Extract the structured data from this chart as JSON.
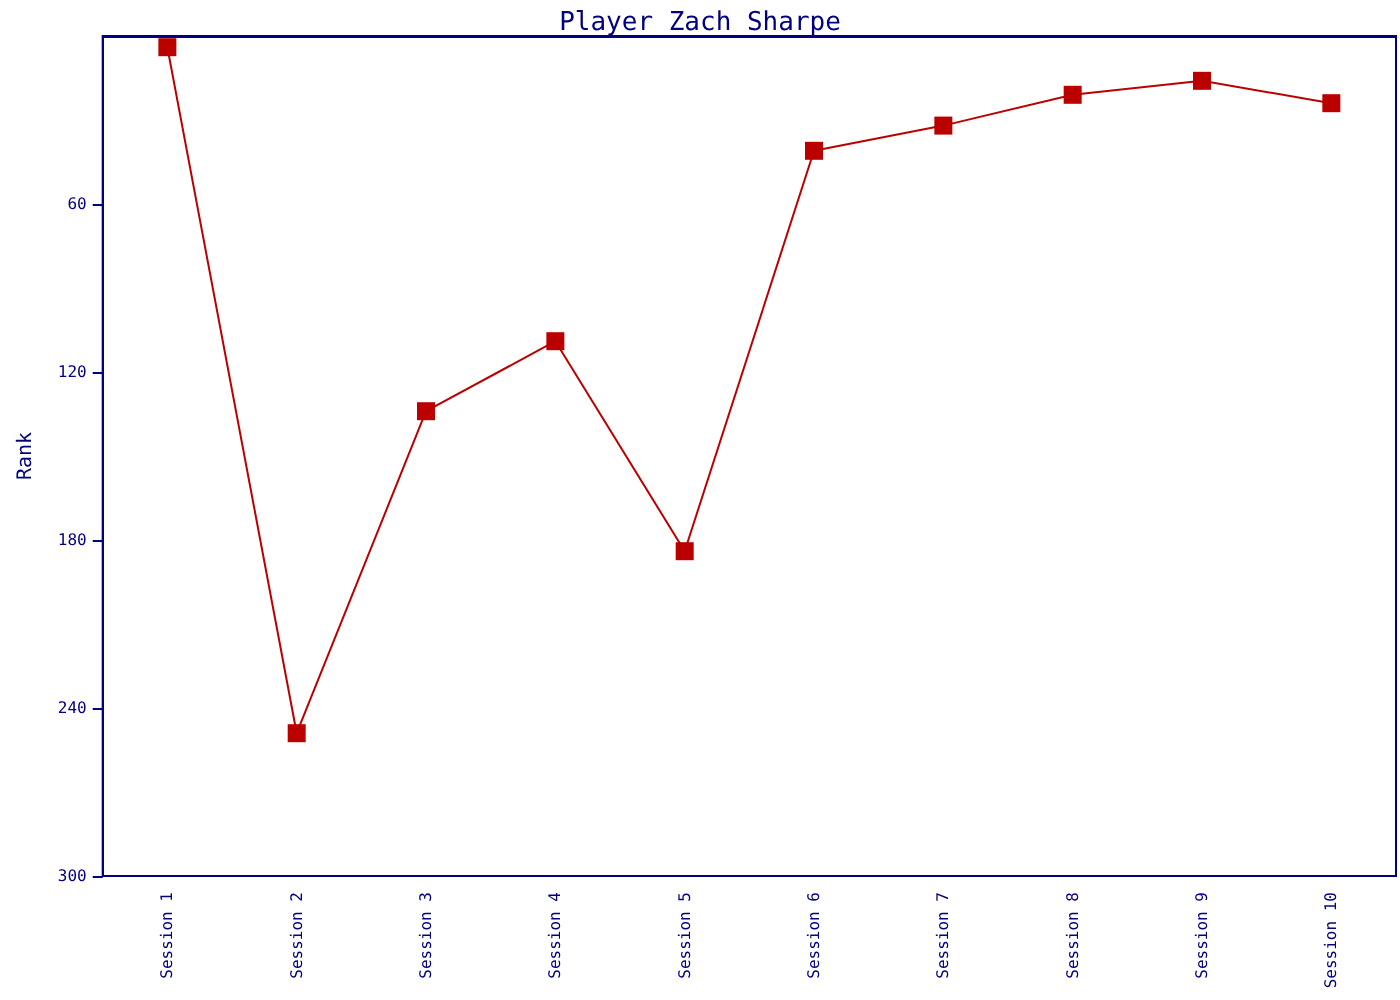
{
  "chart_data": {
    "type": "line",
    "title": "Player Zach Sharpe",
    "ylabel": "Rank",
    "categories": [
      "Session 1",
      "Session 2",
      "Session 3",
      "Session 4",
      "Session 5",
      "Session 6",
      "Session 7",
      "Session 8",
      "Session 9",
      "Session 10"
    ],
    "series": [
      {
        "color": "#bb0000",
        "values": [
          4,
          249,
          134,
          109,
          184,
          41,
          32,
          21,
          16,
          24
        ]
      }
    ],
    "ylim": [
      300,
      0
    ],
    "yticks": [
      60,
      120,
      180,
      240,
      300
    ],
    "grid": false,
    "marker": "square",
    "line_style": "solid"
  }
}
